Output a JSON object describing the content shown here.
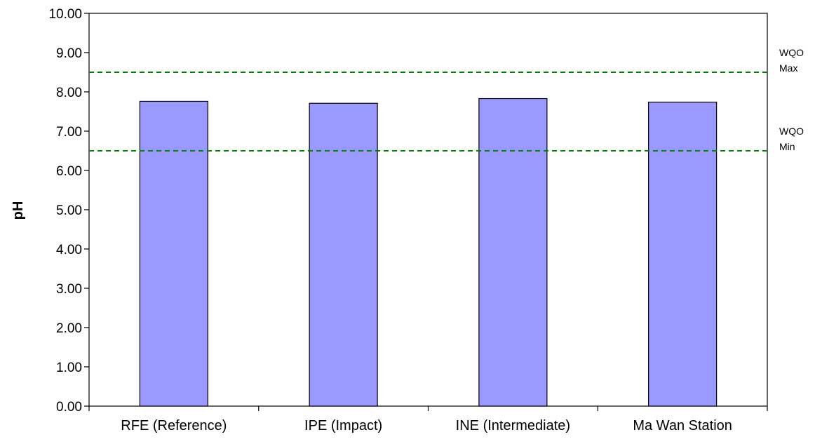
{
  "chart_data": {
    "type": "bar",
    "categories": [
      "RFE (Reference)",
      "IPE (Impact)",
      "INE (Intermediate)",
      "Ma Wan Station"
    ],
    "values": [
      7.76,
      7.71,
      7.83,
      7.74
    ],
    "title": "",
    "xlabel": "",
    "ylabel": "pH",
    "ylim": [
      0,
      10
    ],
    "yticks": [
      "0.00",
      "1.00",
      "2.00",
      "3.00",
      "4.00",
      "5.00",
      "6.00",
      "7.00",
      "8.00",
      "9.00",
      "10.00"
    ],
    "grid": false,
    "legend": "none",
    "bar_color": "#9999FF",
    "reference_lines": [
      {
        "value": 8.5,
        "label_line1": "WQO",
        "label_line2": "Max",
        "color": "#008000",
        "style": "dashed"
      },
      {
        "value": 6.5,
        "label_line1": "WQO",
        "label_line2": "Min",
        "color": "#008000",
        "style": "dashed"
      }
    ]
  }
}
